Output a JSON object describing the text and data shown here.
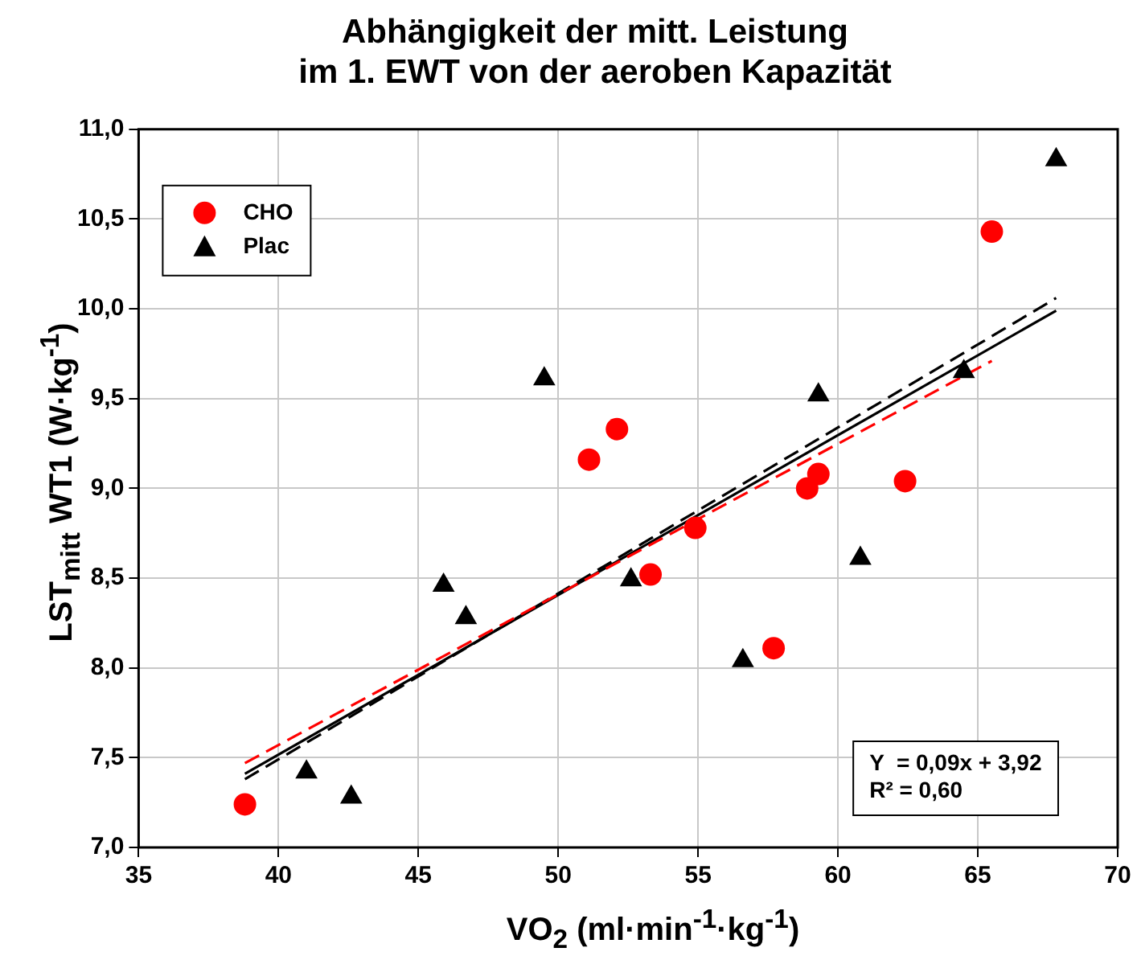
{
  "chart_data": {
    "type": "scatter",
    "title": "Abhängigkeit der mitt. Leistung\nim 1. EWT von der aeroben Kapazität",
    "xlabel": "VO$_{2}$ (ml·min$^{-1}$·kg$^{-1}$)",
    "ylabel": "LST$_{mitt}$ WT1 (W·kg$^{-1}$)",
    "xlim": [
      35,
      70
    ],
    "xticks": [
      35,
      40,
      45,
      50,
      55,
      60,
      65,
      70
    ],
    "ylim": [
      7,
      11
    ],
    "yticks": [
      {
        "value": 7,
        "label": "7,0"
      },
      {
        "value": 7.5,
        "label": "7,5"
      },
      {
        "value": 8,
        "label": "8,0"
      },
      {
        "value": 8.5,
        "label": "8,5"
      },
      {
        "value": 9,
        "label": "9,0"
      },
      {
        "value": 9.5,
        "label": "9,5"
      },
      {
        "value": 10,
        "label": "10,0"
      },
      {
        "value": 10.5,
        "label": "10,5"
      },
      {
        "value": 11,
        "label": "11,0"
      }
    ],
    "grid": true,
    "legend": "top left",
    "annotations": [
      "Y  = 0,09x + 3,92",
      "R² = 0,60"
    ],
    "series": [
      {
        "name": "CHO",
        "type": "scatter",
        "marker": "circle",
        "color": "#ff0000",
        "x": [
          38.8,
          51.1,
          52.1,
          53.3,
          54.9,
          57.7,
          58.9,
          59.3,
          62.4,
          65.5
        ],
        "values": [
          7.24,
          9.16,
          9.33,
          8.52,
          8.78,
          8.11,
          9.0,
          9.08,
          9.04,
          10.43
        ]
      },
      {
        "name": "Plac",
        "type": "scatter",
        "marker": "triangle",
        "color": "#000000",
        "x": [
          41.0,
          42.6,
          45.9,
          46.7,
          49.5,
          52.6,
          56.6,
          59.3,
          60.8,
          64.5,
          67.8
        ],
        "values": [
          7.42,
          7.28,
          8.46,
          8.28,
          9.61,
          8.49,
          8.04,
          9.52,
          8.61,
          9.65,
          10.83
        ]
      },
      {
        "type": "line",
        "marker": "none",
        "line_style": "dashed",
        "color": "#ff0000",
        "x": [
          38.8,
          65.5
        ],
        "values": [
          7.47,
          9.71
        ]
      },
      {
        "type": "line",
        "marker": "none",
        "line_style": "dashed",
        "color": "#000000",
        "x": [
          38.8,
          67.8
        ],
        "values": [
          7.38,
          10.06
        ]
      },
      {
        "type": "line",
        "marker": "none",
        "line_style": "solid",
        "color": "#000000",
        "x": [
          38.8,
          67.8
        ],
        "values": [
          7.41,
          9.99
        ]
      }
    ]
  }
}
